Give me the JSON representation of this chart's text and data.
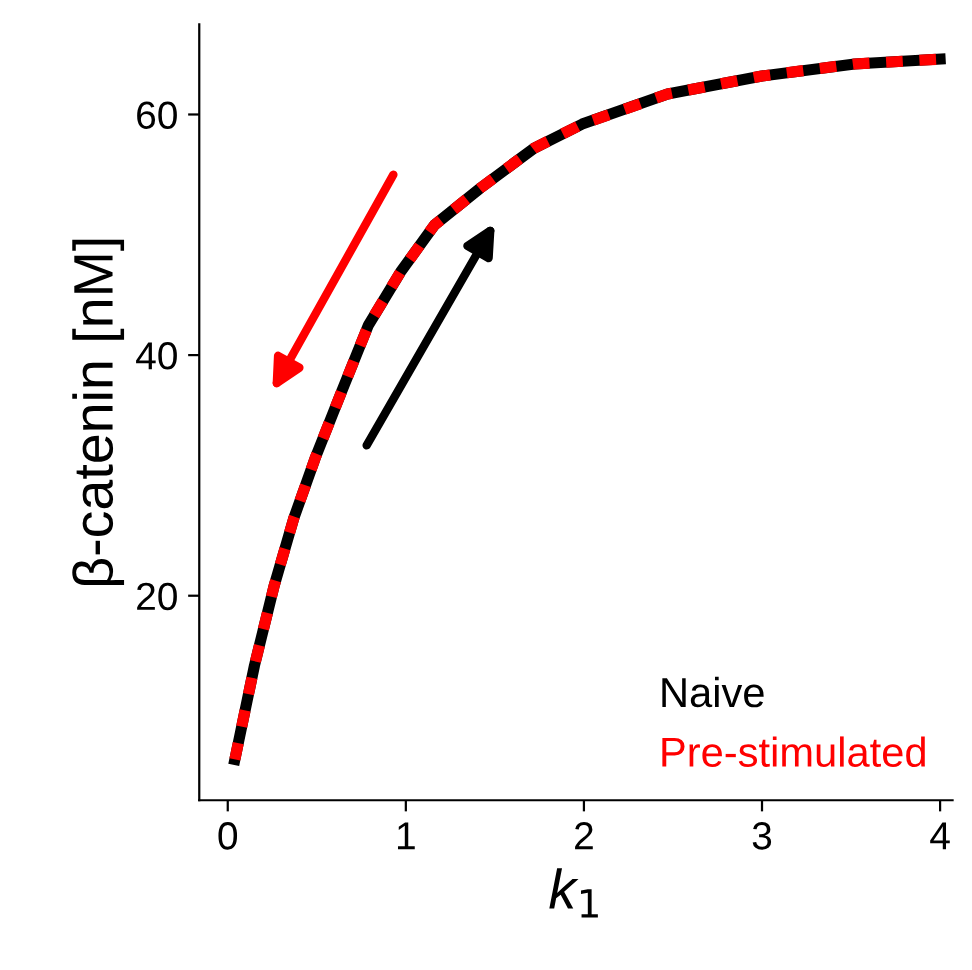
{
  "chart_data": {
    "type": "line",
    "xlabel": "k$_{1}$",
    "ylabel": "β-catenin [nM]",
    "x": [
      0.04,
      0.15,
      0.26,
      0.37,
      0.49,
      0.64,
      0.79,
      0.97,
      1.16,
      1.42,
      1.72,
      1.99,
      2.47,
      3.0,
      3.52,
      4.0
    ],
    "series": [
      {
        "name": "Naive",
        "color": "#000000",
        "line_style": "solid",
        "values": [
          6.4,
          14.2,
          20.8,
          26.4,
          31.4,
          37,
          42.5,
          46.9,
          50.8,
          53.9,
          57.2,
          59.2,
          61.7,
          63.2,
          64.2,
          64.6
        ]
      },
      {
        "name": "Pre-stimulated",
        "color": "#ff0000",
        "line_style": "dashed",
        "values": [
          6.4,
          14.2,
          20.8,
          26.4,
          31.4,
          37,
          42.5,
          46.9,
          50.8,
          53.9,
          57.2,
          59.2,
          61.7,
          63.2,
          64.2,
          64.6
        ]
      }
    ],
    "xlim": [
      -0.16,
      4.07
    ],
    "ylim": [
      3,
      67.5
    ],
    "xticks": [
      0,
      1,
      2,
      3,
      4
    ],
    "yticks": [
      20,
      40,
      60
    ],
    "grid": false,
    "legend": "bottom right",
    "marker": "none"
  }
}
